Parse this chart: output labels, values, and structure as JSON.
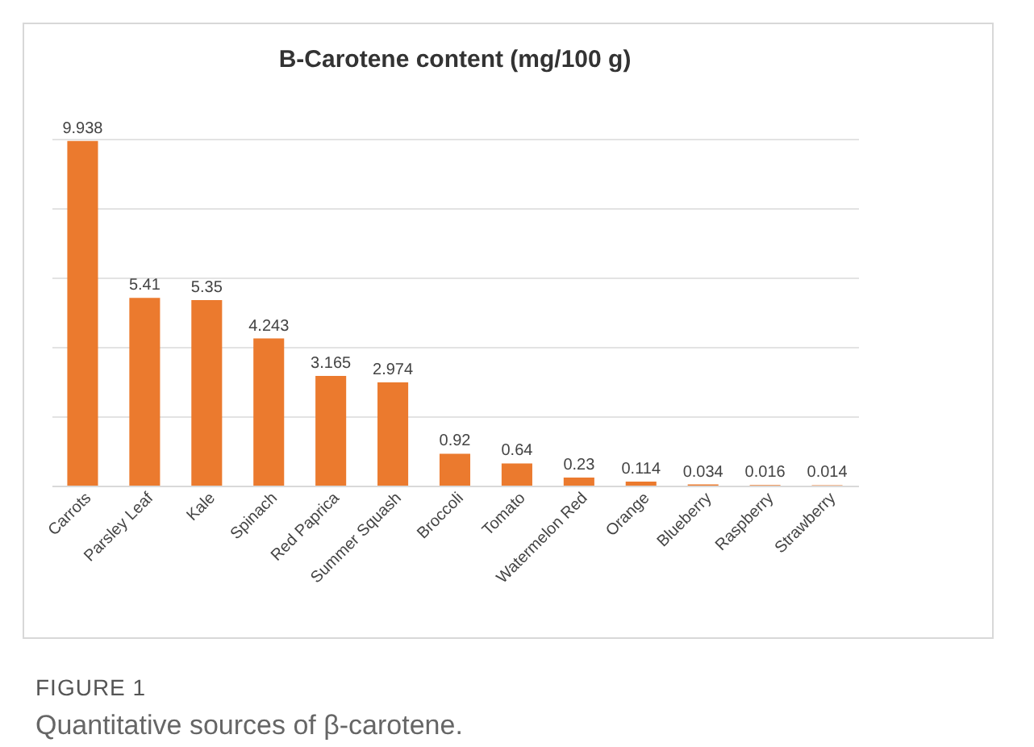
{
  "chart_data": {
    "type": "bar",
    "title": "B-Carotene content (mg/100 g)",
    "categories": [
      "Carrots",
      "Parsley Leaf",
      "Kale",
      "Spinach",
      "Red Paprica",
      "Summer Squash",
      "Broccoli",
      "Tomato",
      "Watermelon Red",
      "Orange",
      "Blueberry",
      "Raspberry",
      "Strawberry"
    ],
    "values": [
      9.938,
      5.41,
      5.35,
      4.243,
      3.165,
      2.974,
      0.92,
      0.64,
      0.23,
      0.114,
      0.034,
      0.016,
      0.014
    ],
    "color": "#eb7a2e",
    "ylim": [
      0,
      10
    ],
    "yticks": [
      {
        "value": 0,
        "label": null
      },
      {
        "value": 2,
        "label": null
      },
      {
        "value": 4,
        "label": null
      },
      {
        "value": 6,
        "label": null
      },
      {
        "value": 8,
        "label": null
      },
      {
        "value": 10,
        "label": null
      }
    ],
    "grid": "y",
    "tick_labels": "x",
    "data_labels": true,
    "annotations": [
      "FIGURE 1",
      "Quantitative sources of β-carotene."
    ]
  }
}
